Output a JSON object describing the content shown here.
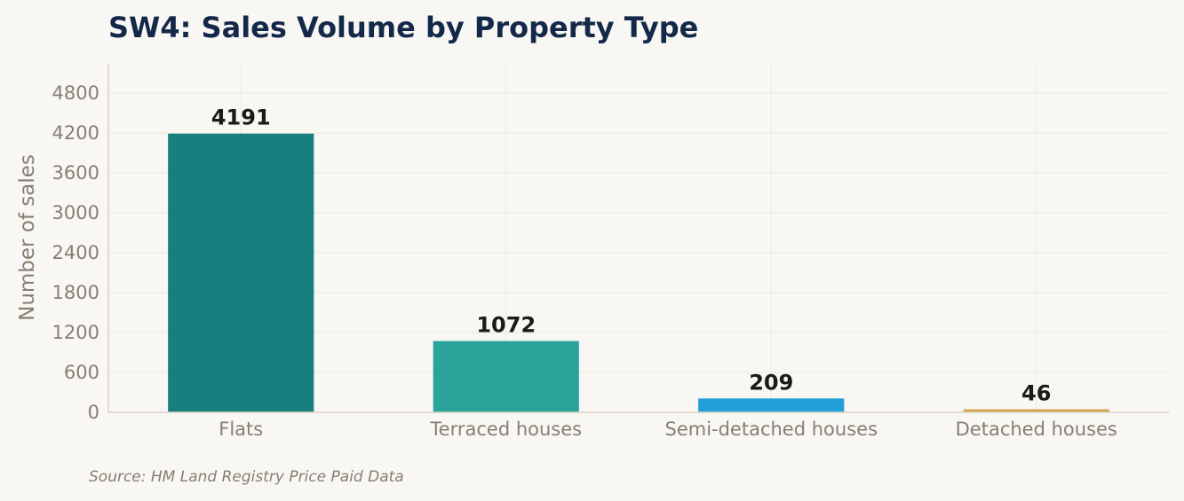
{
  "chart_data": {
    "type": "bar",
    "title": "SW4: Sales Volume by Property Type",
    "xlabel": "",
    "ylabel": "Number of sales",
    "categories": [
      "Flats",
      "Terraced houses",
      "Semi-detached houses",
      "Detached houses"
    ],
    "values": [
      4191,
      1072,
      209,
      46
    ],
    "data_labels": [
      "4191",
      "1072",
      "209",
      "46"
    ],
    "colors": [
      "#177f7d",
      "#2aa39b",
      "#229fd9",
      "#d4a34a"
    ],
    "ylim": [
      0,
      5240
    ],
    "yticks": [
      0,
      600,
      1200,
      1800,
      2400,
      3000,
      3600,
      4200,
      4800
    ],
    "grid": true,
    "legend": "none"
  },
  "source_note": "Source: HM Land Registry Price Paid Data"
}
